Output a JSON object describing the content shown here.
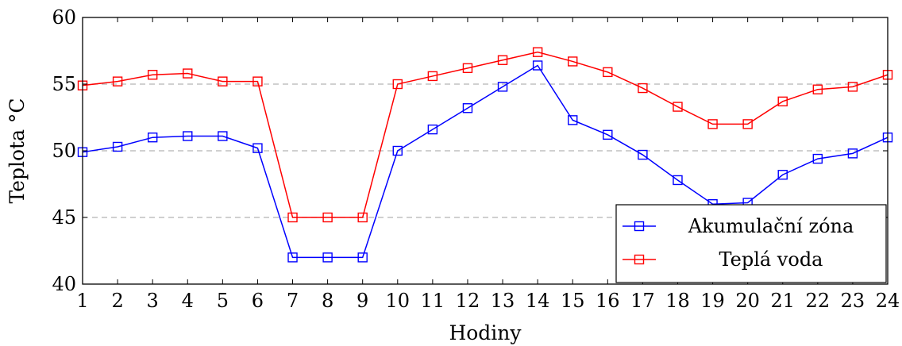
{
  "chart_data": {
    "type": "line",
    "xlabel": "Hodiny",
    "ylabel": "Teplota °C",
    "xlim": [
      1,
      24
    ],
    "ylim": [
      40,
      60
    ],
    "x": [
      1,
      2,
      3,
      4,
      5,
      6,
      7,
      8,
      9,
      10,
      11,
      12,
      13,
      14,
      15,
      16,
      17,
      18,
      19,
      20,
      21,
      22,
      23,
      24
    ],
    "xticks": [
      "1",
      "2",
      "3",
      "4",
      "5",
      "6",
      "7",
      "8",
      "9",
      "10",
      "11",
      "12",
      "13",
      "14",
      "15",
      "16",
      "17",
      "18",
      "19",
      "20",
      "21",
      "22",
      "23",
      "24"
    ],
    "yticks": [
      "40",
      "45",
      "50",
      "55",
      "60"
    ],
    "grid": "horizontal dashed",
    "legend_position": "bottom-right",
    "series": [
      {
        "name": "Akumulační zóna",
        "color": "#0000ff",
        "marker": "square",
        "values": [
          49.9,
          50.3,
          51.0,
          51.1,
          51.1,
          50.2,
          42.0,
          42.0,
          42.0,
          50.0,
          51.6,
          53.2,
          54.8,
          56.4,
          52.3,
          51.2,
          49.7,
          47.8,
          46.0,
          46.1,
          48.2,
          49.4,
          49.8,
          51.0
        ]
      },
      {
        "name": "Teplá voda",
        "color": "#ff0000",
        "marker": "square",
        "values": [
          54.9,
          55.2,
          55.7,
          55.8,
          55.2,
          55.2,
          45.0,
          45.0,
          45.0,
          55.0,
          55.6,
          56.2,
          56.8,
          57.4,
          56.7,
          55.9,
          54.7,
          53.3,
          52.0,
          52.0,
          53.7,
          54.6,
          54.8,
          55.7
        ]
      }
    ]
  }
}
